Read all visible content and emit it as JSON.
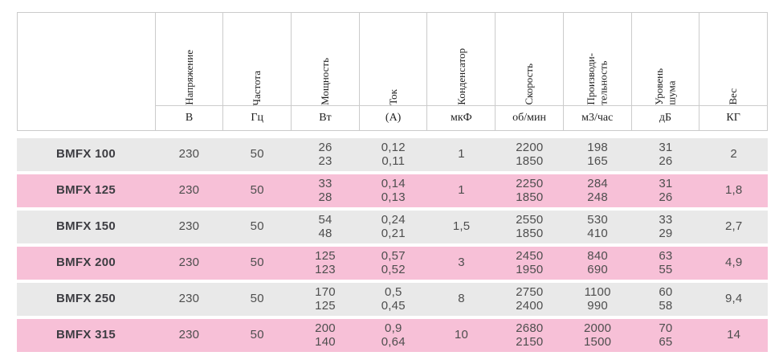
{
  "table": {
    "columns": [
      {
        "label": "",
        "unit": ""
      },
      {
        "label": "Напряжение",
        "unit": "В"
      },
      {
        "label": "Частота",
        "unit": "Гц"
      },
      {
        "label": "Мощность",
        "unit": "Вт"
      },
      {
        "label": "Ток",
        "unit": "(А)"
      },
      {
        "label": "Конденсатор",
        "unit": "мкФ"
      },
      {
        "label": "Скорость",
        "unit": "об/мин"
      },
      {
        "label": "Производи-\nтельность",
        "unit": "м3/час"
      },
      {
        "label": "Уровень\nшума",
        "unit": "дБ"
      },
      {
        "label": "Вес",
        "unit": "КГ"
      }
    ],
    "rows": [
      {
        "model": "BMFX 100",
        "values": [
          "230",
          "50",
          "26\n23",
          "0,12\n0,11",
          "1",
          "2200\n1850",
          "198\n165",
          "31\n26",
          "2"
        ]
      },
      {
        "model": "BMFX 125",
        "values": [
          "230",
          "50",
          "33\n28",
          "0,14\n0,13",
          "1",
          "2250\n1850",
          "284\n248",
          "31\n26",
          "1,8"
        ]
      },
      {
        "model": "BMFX 150",
        "values": [
          "230",
          "50",
          "54\n48",
          "0,24\n0,21",
          "1,5",
          "2550\n1850",
          "530\n410",
          "33\n29",
          "2,7"
        ]
      },
      {
        "model": "BMFX 200",
        "values": [
          "230",
          "50",
          "125\n123",
          "0,57\n0,52",
          "3",
          "2450\n1950",
          "840\n690",
          "63\n55",
          "4,9"
        ]
      },
      {
        "model": "BMFX 250",
        "values": [
          "230",
          "50",
          "170\n125",
          "0,5\n0,45",
          "8",
          "2750\n2400",
          "1100\n990",
          "60\n58",
          "9,4"
        ]
      },
      {
        "model": "BMFX 315",
        "values": [
          "230",
          "50",
          "200\n140",
          "0,9\n0,64",
          "10",
          "2680\n2150",
          "2000\n1500",
          "70\n65",
          "14"
        ]
      }
    ],
    "row_stripe_pattern": [
      "gray",
      "pink"
    ],
    "colors": {
      "row_gray": "#e9e9e9",
      "row_pink": "#f7c0d7",
      "border": "#cbcbcb",
      "header_text": "#1f1f1f",
      "data_text": "#4e4e4e"
    }
  }
}
